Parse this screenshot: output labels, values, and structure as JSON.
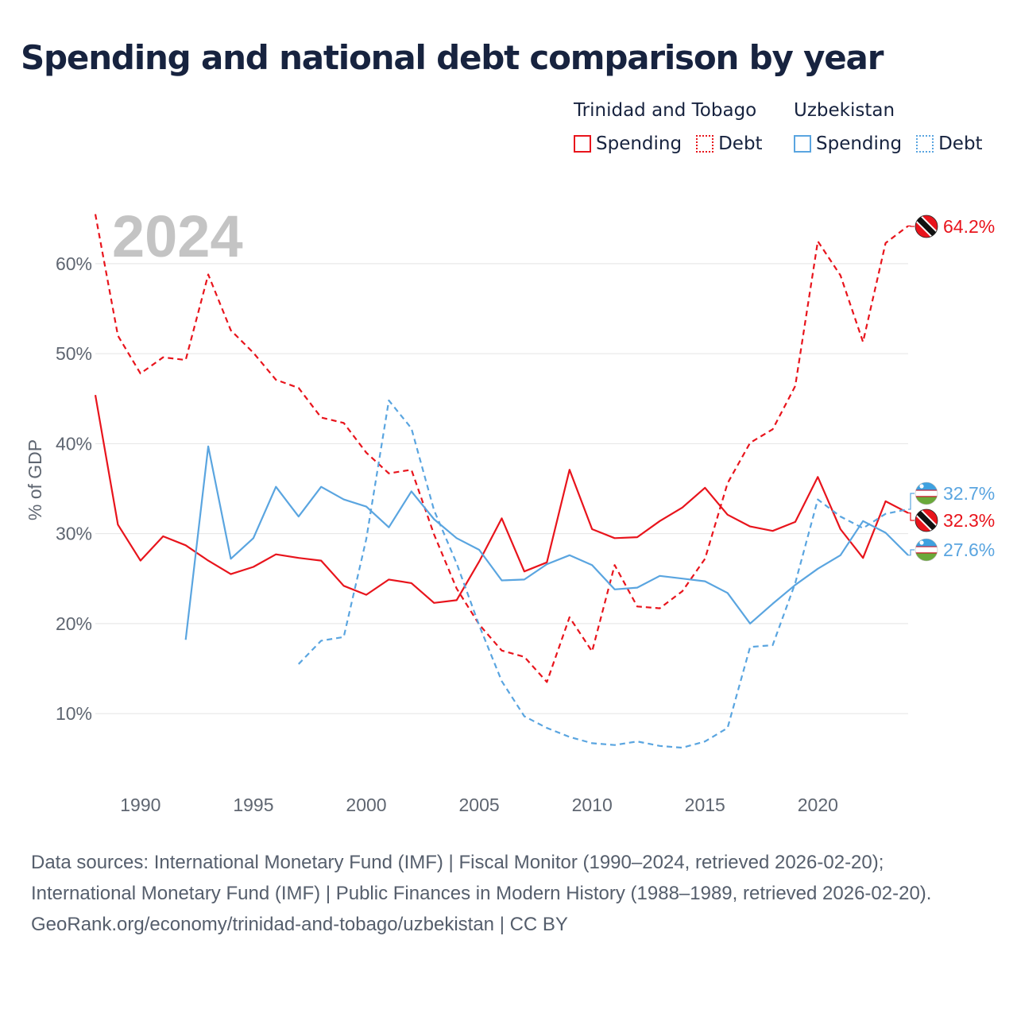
{
  "title": "Spending and national debt comparison by year",
  "legend": {
    "groups": [
      {
        "name": "Trinidad and Tobago",
        "items": [
          "Spending",
          "Debt"
        ]
      },
      {
        "name": "Uzbekistan",
        "items": [
          "Spending",
          "Debt"
        ]
      }
    ]
  },
  "footer": {
    "sources": "Data sources: International Monetary Fund (IMF) | Fiscal Monitor (1990–2024, retrieved 2026-02-20); International Monetary Fund (IMF) | Public Finances in Modern History (1988–1989, retrieved 2026-02-20).",
    "credit": "GeoRank.org/economy/trinidad-and-tobago/uzbekistan | CC BY"
  },
  "colors": {
    "tt": "#e8141c",
    "uz": "#5aa5e0",
    "text": "#17233f",
    "axis": "#5f6671",
    "grid": "#e4e4e4",
    "year": "#c4c4c4"
  },
  "chart_data": {
    "type": "line",
    "title": "Spending and national debt comparison by year",
    "year_label": "2024",
    "ylabel": "% of GDP",
    "xlim": [
      1988,
      2024
    ],
    "ylim": [
      2.5,
      67.5
    ],
    "xticks": [
      1990,
      1995,
      2000,
      2005,
      2010,
      2015,
      2020
    ],
    "yticks": [
      10,
      20,
      30,
      40,
      50,
      60
    ],
    "ytick_labels": [
      "10%",
      "20%",
      "30%",
      "40%",
      "50%",
      "60%"
    ],
    "series": [
      {
        "name": "Trinidad and Tobago Spending",
        "country": "tt",
        "style": "solid",
        "end_label": "32.3%",
        "x": [
          1988,
          1989,
          1990,
          1991,
          1992,
          1993,
          1994,
          1995,
          1996,
          1997,
          1998,
          1999,
          2000,
          2001,
          2002,
          2003,
          2004,
          2005,
          2006,
          2007,
          2008,
          2009,
          2010,
          2011,
          2012,
          2013,
          2014,
          2015,
          2016,
          2017,
          2018,
          2019,
          2020,
          2021,
          2022,
          2023,
          2024
        ],
        "values": [
          45.4,
          31.0,
          27.0,
          29.7,
          28.7,
          27.0,
          25.5,
          26.3,
          27.7,
          27.3,
          27.0,
          24.2,
          23.2,
          24.9,
          24.5,
          22.3,
          22.6,
          26.9,
          31.7,
          25.8,
          26.8,
          37.1,
          30.5,
          29.5,
          29.6,
          31.4,
          32.9,
          35.1,
          32.1,
          30.8,
          30.3,
          31.3,
          36.3,
          30.5,
          27.3,
          33.6,
          32.3
        ]
      },
      {
        "name": "Trinidad and Tobago Debt",
        "country": "tt",
        "style": "dashed",
        "end_label": "64.2%",
        "x": [
          1988,
          1989,
          1990,
          1991,
          1992,
          1993,
          1994,
          1995,
          1996,
          1997,
          1998,
          1999,
          2000,
          2001,
          2002,
          2003,
          2004,
          2005,
          2006,
          2007,
          2008,
          2009,
          2010,
          2011,
          2012,
          2013,
          2014,
          2015,
          2016,
          2017,
          2018,
          2019,
          2020,
          2021,
          2022,
          2023,
          2024
        ],
        "values": [
          65.5,
          52.0,
          47.8,
          49.6,
          49.3,
          58.8,
          52.6,
          50.1,
          47.1,
          46.2,
          42.9,
          42.3,
          39.0,
          36.7,
          37.1,
          29.9,
          23.9,
          19.9,
          17.0,
          16.3,
          13.5,
          20.7,
          16.9,
          26.5,
          21.9,
          21.7,
          23.6,
          27.2,
          35.6,
          40.1,
          41.6,
          46.4,
          62.5,
          58.7,
          51.3,
          62.3,
          64.2
        ]
      },
      {
        "name": "Uzbekistan Spending",
        "country": "uz",
        "style": "solid",
        "end_label": "27.6%",
        "x": [
          1992,
          1993,
          1994,
          1995,
          1996,
          1997,
          1998,
          1999,
          2000,
          2001,
          2002,
          2003,
          2004,
          2005,
          2006,
          2007,
          2008,
          2009,
          2010,
          2011,
          2012,
          2013,
          2014,
          2015,
          2016,
          2017,
          2018,
          2019,
          2020,
          2021,
          2022,
          2023,
          2024
        ],
        "values": [
          18.2,
          39.7,
          27.2,
          29.5,
          35.2,
          31.9,
          35.2,
          33.8,
          33.0,
          30.7,
          34.7,
          31.6,
          29.5,
          28.2,
          24.8,
          24.9,
          26.6,
          27.6,
          26.5,
          23.8,
          24.0,
          25.3,
          25.0,
          24.7,
          23.4,
          20.0,
          22.2,
          24.3,
          26.1,
          27.6,
          31.4,
          30.1,
          27.6
        ]
      },
      {
        "name": "Uzbekistan Debt",
        "country": "uz",
        "style": "dashed",
        "end_label": "32.7%",
        "x": [
          1997,
          1998,
          1999,
          2000,
          2001,
          2002,
          2003,
          2004,
          2005,
          2006,
          2007,
          2008,
          2009,
          2010,
          2011,
          2012,
          2013,
          2014,
          2015,
          2016,
          2017,
          2018,
          2019,
          2020,
          2021,
          2022,
          2023,
          2024
        ],
        "values": [
          15.5,
          18.1,
          18.5,
          29.4,
          44.8,
          41.7,
          32.6,
          26.7,
          19.8,
          13.6,
          9.7,
          8.4,
          7.4,
          6.7,
          6.5,
          6.9,
          6.4,
          6.2,
          6.9,
          8.4,
          17.4,
          17.6,
          24.5,
          33.8,
          31.9,
          30.6,
          32.2,
          32.7
        ]
      }
    ]
  }
}
